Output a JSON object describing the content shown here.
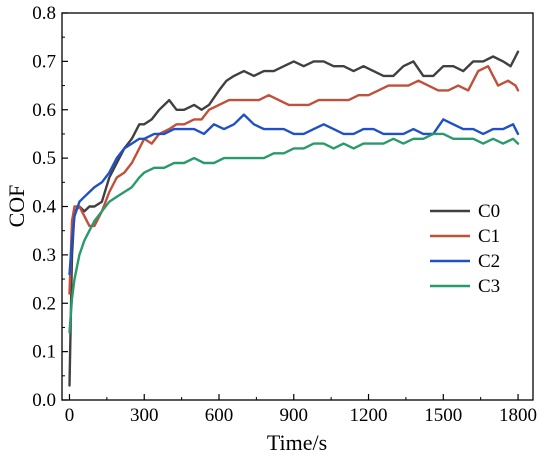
{
  "chart_data": {
    "type": "line",
    "title": "",
    "xlabel": "Time/s",
    "ylabel": "COF",
    "xlim": [
      -30,
      1860
    ],
    "ylim": [
      0.0,
      0.8
    ],
    "xticks": [
      0,
      300,
      600,
      900,
      1200,
      1500,
      1800
    ],
    "xtick_labels": [
      "0",
      "300",
      "600",
      "900",
      "1200",
      "1500",
      "1800"
    ],
    "yticks": [
      0.0,
      0.1,
      0.2,
      0.3,
      0.4,
      0.5,
      0.6,
      0.7,
      0.8
    ],
    "ytick_labels": [
      "0.0",
      "0.1",
      "0.2",
      "0.3",
      "0.4",
      "0.5",
      "0.6",
      "0.7",
      "0.8"
    ],
    "grid": false,
    "legend_position": "right-center",
    "series": [
      {
        "name": "C0",
        "color": "#404040",
        "x": [
          0,
          10,
          20,
          40,
          60,
          80,
          100,
          130,
          160,
          190,
          220,
          250,
          280,
          300,
          330,
          360,
          400,
          430,
          460,
          500,
          530,
          560,
          600,
          630,
          660,
          700,
          740,
          780,
          820,
          860,
          900,
          940,
          980,
          1020,
          1060,
          1100,
          1140,
          1180,
          1220,
          1260,
          1300,
          1340,
          1380,
          1420,
          1460,
          1500,
          1540,
          1580,
          1620,
          1660,
          1700,
          1740,
          1770,
          1790,
          1800
        ],
        "y": [
          0.03,
          0.3,
          0.39,
          0.4,
          0.39,
          0.4,
          0.4,
          0.41,
          0.46,
          0.49,
          0.52,
          0.54,
          0.57,
          0.57,
          0.58,
          0.6,
          0.62,
          0.6,
          0.6,
          0.61,
          0.6,
          0.61,
          0.64,
          0.66,
          0.67,
          0.68,
          0.67,
          0.68,
          0.68,
          0.69,
          0.7,
          0.69,
          0.7,
          0.7,
          0.69,
          0.69,
          0.68,
          0.69,
          0.68,
          0.67,
          0.67,
          0.69,
          0.7,
          0.67,
          0.67,
          0.69,
          0.69,
          0.68,
          0.7,
          0.7,
          0.71,
          0.7,
          0.69,
          0.71,
          0.72
        ]
      },
      {
        "name": "C1",
        "color": "#c0503a",
        "x": [
          0,
          10,
          20,
          40,
          60,
          80,
          100,
          130,
          160,
          190,
          220,
          250,
          280,
          300,
          330,
          360,
          400,
          430,
          460,
          500,
          530,
          560,
          600,
          640,
          680,
          720,
          760,
          800,
          840,
          880,
          920,
          960,
          1000,
          1040,
          1080,
          1120,
          1160,
          1200,
          1240,
          1280,
          1320,
          1360,
          1400,
          1440,
          1480,
          1520,
          1560,
          1600,
          1640,
          1680,
          1720,
          1760,
          1790,
          1800
        ],
        "y": [
          0.22,
          0.37,
          0.4,
          0.4,
          0.38,
          0.36,
          0.36,
          0.39,
          0.43,
          0.46,
          0.47,
          0.49,
          0.52,
          0.54,
          0.53,
          0.55,
          0.56,
          0.57,
          0.57,
          0.58,
          0.58,
          0.6,
          0.61,
          0.62,
          0.62,
          0.62,
          0.62,
          0.63,
          0.62,
          0.61,
          0.61,
          0.61,
          0.62,
          0.62,
          0.62,
          0.62,
          0.63,
          0.63,
          0.64,
          0.65,
          0.65,
          0.65,
          0.66,
          0.65,
          0.64,
          0.64,
          0.65,
          0.64,
          0.68,
          0.69,
          0.65,
          0.66,
          0.65,
          0.64
        ]
      },
      {
        "name": "C2",
        "color": "#2050c8",
        "x": [
          0,
          10,
          20,
          40,
          60,
          80,
          100,
          130,
          160,
          190,
          220,
          250,
          280,
          300,
          340,
          380,
          420,
          460,
          500,
          540,
          580,
          620,
          660,
          700,
          740,
          780,
          820,
          860,
          900,
          940,
          980,
          1020,
          1060,
          1100,
          1140,
          1180,
          1220,
          1260,
          1300,
          1340,
          1380,
          1420,
          1460,
          1500,
          1540,
          1580,
          1620,
          1660,
          1700,
          1740,
          1780,
          1800
        ],
        "y": [
          0.26,
          0.33,
          0.38,
          0.41,
          0.42,
          0.43,
          0.44,
          0.45,
          0.47,
          0.5,
          0.52,
          0.53,
          0.54,
          0.54,
          0.55,
          0.55,
          0.56,
          0.56,
          0.56,
          0.55,
          0.57,
          0.56,
          0.57,
          0.59,
          0.57,
          0.56,
          0.56,
          0.56,
          0.55,
          0.55,
          0.56,
          0.57,
          0.56,
          0.55,
          0.55,
          0.56,
          0.56,
          0.55,
          0.55,
          0.55,
          0.56,
          0.55,
          0.55,
          0.58,
          0.57,
          0.56,
          0.56,
          0.55,
          0.56,
          0.56,
          0.57,
          0.55
        ]
      },
      {
        "name": "C3",
        "color": "#2a9a6a",
        "x": [
          0,
          10,
          20,
          40,
          60,
          80,
          100,
          130,
          160,
          190,
          220,
          250,
          280,
          300,
          340,
          380,
          420,
          460,
          500,
          540,
          580,
          620,
          660,
          700,
          740,
          780,
          820,
          860,
          900,
          940,
          980,
          1020,
          1060,
          1100,
          1140,
          1180,
          1220,
          1260,
          1300,
          1340,
          1380,
          1420,
          1460,
          1500,
          1540,
          1580,
          1620,
          1660,
          1700,
          1740,
          1780,
          1800
        ],
        "y": [
          0.14,
          0.21,
          0.25,
          0.3,
          0.33,
          0.35,
          0.37,
          0.39,
          0.41,
          0.42,
          0.43,
          0.44,
          0.46,
          0.47,
          0.48,
          0.48,
          0.49,
          0.49,
          0.5,
          0.49,
          0.49,
          0.5,
          0.5,
          0.5,
          0.5,
          0.5,
          0.51,
          0.51,
          0.52,
          0.52,
          0.53,
          0.53,
          0.52,
          0.53,
          0.52,
          0.53,
          0.53,
          0.53,
          0.54,
          0.53,
          0.54,
          0.54,
          0.55,
          0.55,
          0.54,
          0.54,
          0.54,
          0.53,
          0.54,
          0.53,
          0.54,
          0.53
        ]
      }
    ]
  }
}
